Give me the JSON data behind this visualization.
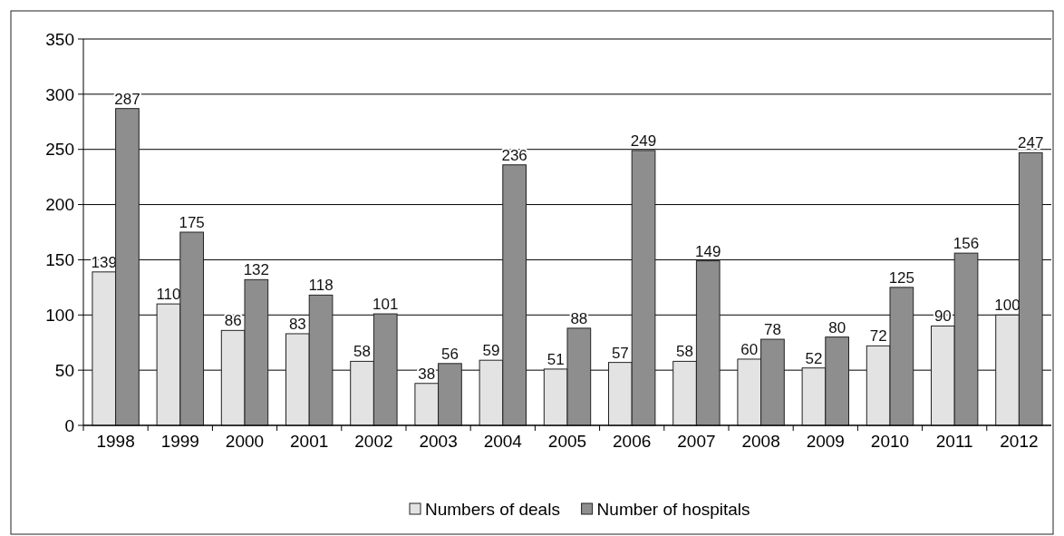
{
  "chart_data": {
    "type": "bar",
    "categories": [
      "1998",
      "1999",
      "2000",
      "2001",
      "2002",
      "2003",
      "2004",
      "2005",
      "2006",
      "2007",
      "2008",
      "2009",
      "2010",
      "2011",
      "2012"
    ],
    "series": [
      {
        "name": "Numbers of deals",
        "color": "#e3e3e3",
        "values": [
          139,
          110,
          86,
          83,
          58,
          38,
          59,
          51,
          57,
          58,
          60,
          52,
          72,
          90,
          100
        ]
      },
      {
        "name": "Number of hospitals",
        "color": "#8e8e8e",
        "values": [
          287,
          175,
          132,
          118,
          101,
          56,
          236,
          88,
          249,
          149,
          78,
          80,
          125,
          156,
          247
        ]
      }
    ],
    "ylim": [
      0,
      350
    ],
    "yticks": [
      0,
      50,
      100,
      150,
      200,
      250,
      300,
      350
    ],
    "grid": "y",
    "legend": "bottom",
    "data_labels": true
  }
}
